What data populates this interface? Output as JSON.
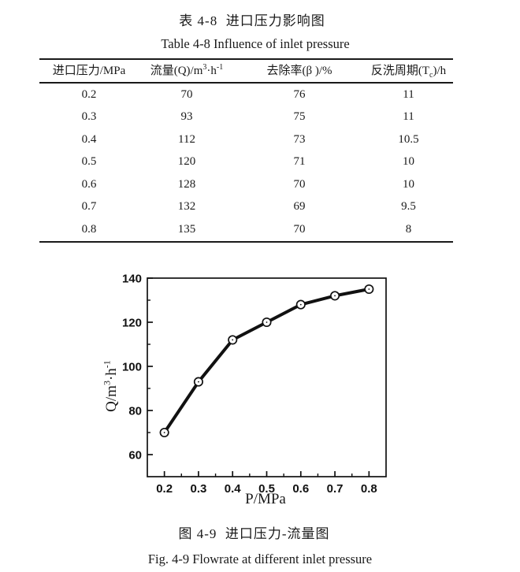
{
  "page": {
    "title_zh": "表 4-8  进口压力影响图",
    "title_en": "Table 4-8 Influence of inlet pressure",
    "caption_zh": "图 4-9  进口压力-流量图",
    "caption_en": "Fig. 4-9 Flowrate at different inlet pressure"
  },
  "table": {
    "columns": [
      {
        "label": "进口压力/MPa"
      },
      {
        "pre": "流量(Q)/m",
        "sup1": "3",
        "mid": "·h",
        "sup2": "-1"
      },
      {
        "label": "去除率(β )/%"
      },
      {
        "pre": "反洗周期(T",
        "sub": "c",
        "post": ")/h"
      }
    ],
    "rows": [
      [
        "0.2",
        "70",
        "76",
        "11"
      ],
      [
        "0.3",
        "93",
        "75",
        "11"
      ],
      [
        "0.4",
        "112",
        "73",
        "10.5"
      ],
      [
        "0.5",
        "120",
        "71",
        "10"
      ],
      [
        "0.6",
        "128",
        "70",
        "10"
      ],
      [
        "0.7",
        "132",
        "69",
        "9.5"
      ],
      [
        "0.8",
        "135",
        "70",
        "8"
      ]
    ]
  },
  "chart_data": {
    "type": "line",
    "title": "",
    "x": [
      0.2,
      0.3,
      0.4,
      0.5,
      0.6,
      0.7,
      0.8
    ],
    "y": [
      70,
      93,
      112,
      120,
      128,
      132,
      135
    ],
    "xlabel": "P/MPa",
    "ylabel": "Q/m³·h⁻¹",
    "ylabel_parts": {
      "pre": "Q/m",
      "sup1": "3",
      "mid": "·h",
      "sup2": "-1"
    },
    "xlim": [
      0.15,
      0.85
    ],
    "ylim": [
      50,
      140
    ],
    "xtick_labels": [
      "0.2",
      "0.3",
      "0.4",
      "0.5",
      "0.6",
      "0.7",
      "0.8"
    ],
    "xticks": [
      0.2,
      0.3,
      0.4,
      0.5,
      0.6,
      0.7,
      0.8
    ],
    "yticks": [
      60,
      80,
      100,
      120,
      140
    ],
    "xminor": [
      0.25,
      0.35,
      0.45,
      0.55,
      0.65,
      0.75
    ],
    "yminor": [
      70,
      90,
      110,
      130
    ],
    "grid": false,
    "legend": false,
    "marker": "open-circle-center-dot",
    "line_color": "#111111",
    "axis_color": "#111111"
  }
}
